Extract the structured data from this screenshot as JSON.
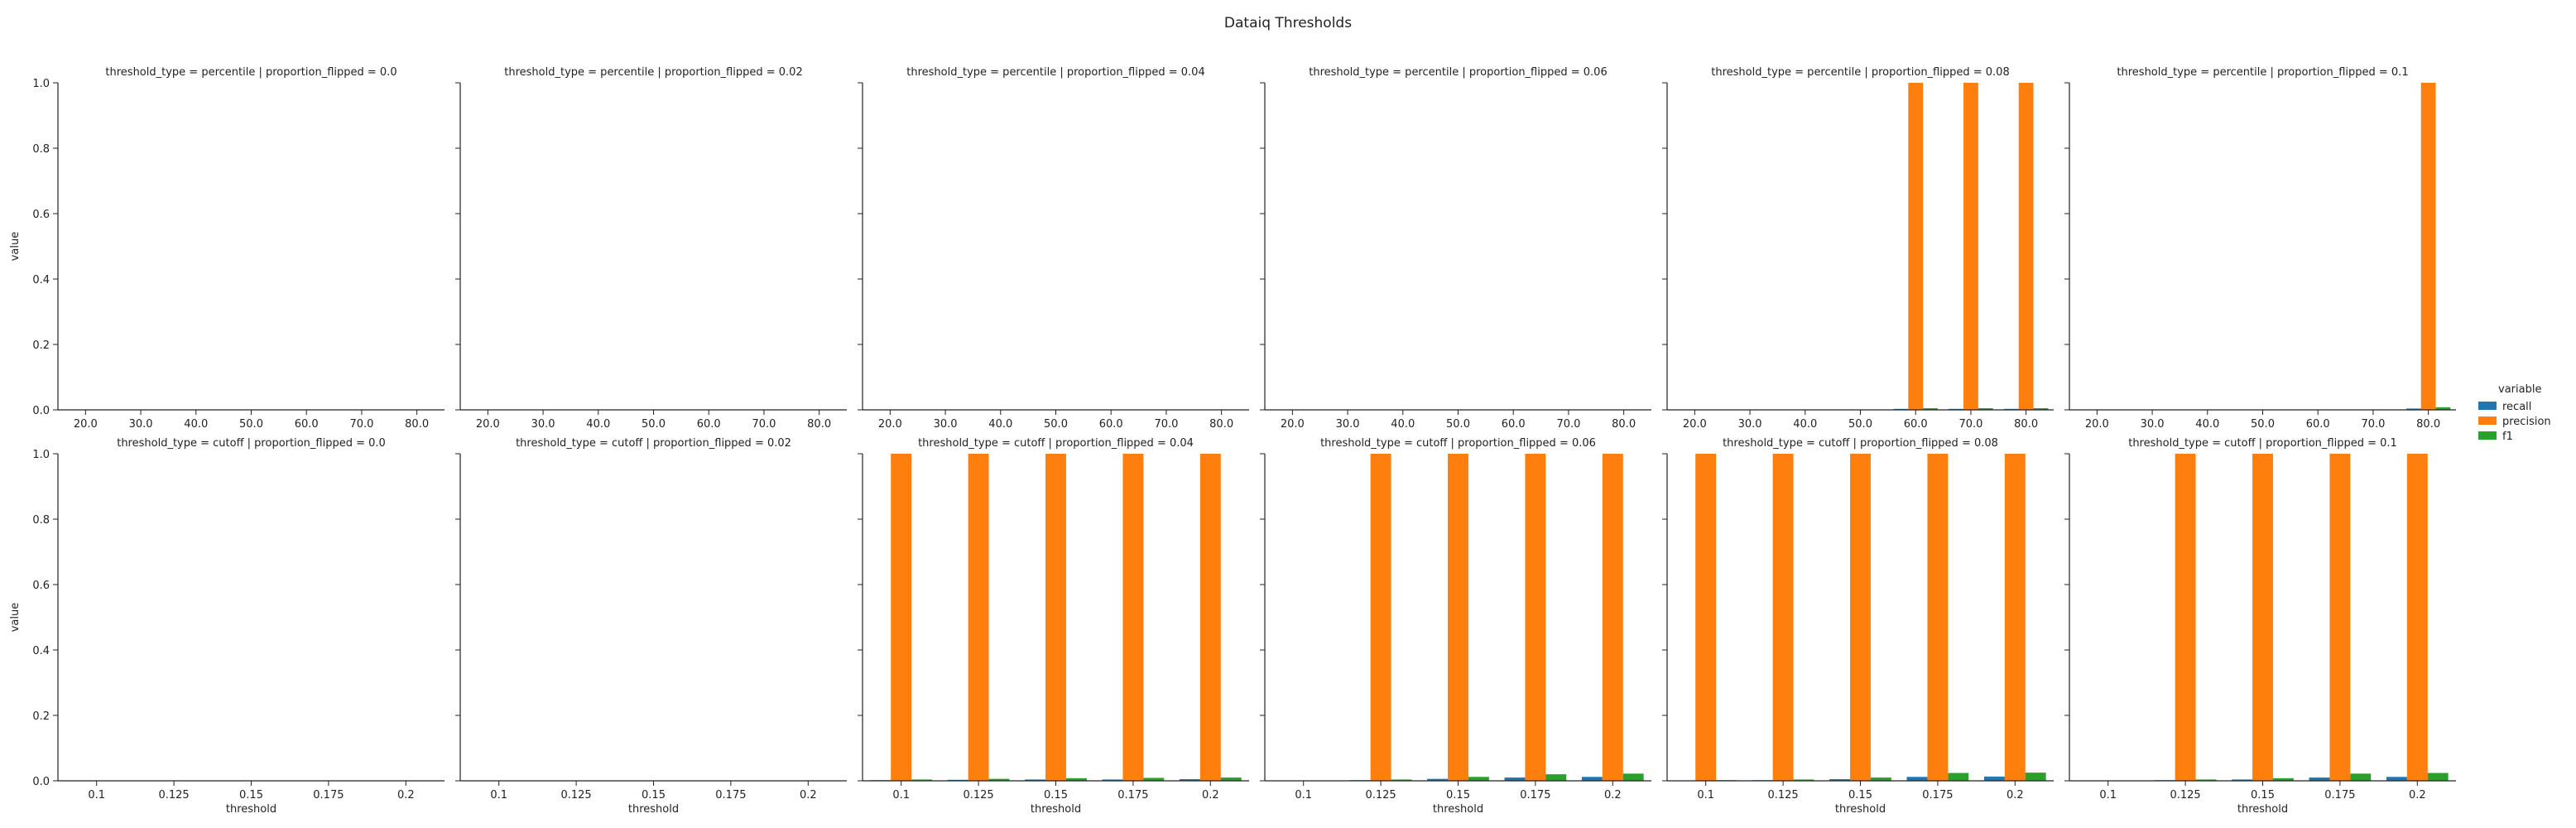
{
  "figure": {
    "title": "Dataiq Thresholds"
  },
  "legend": {
    "title": "variable",
    "placement": "right",
    "items": [
      {
        "label": "recall",
        "color": "#1f77b4"
      },
      {
        "label": "precision",
        "color": "#ff7f0e"
      },
      {
        "label": "f1",
        "color": "#2ca02c"
      }
    ]
  },
  "chart_data": [
    {
      "type": "bar",
      "title": "threshold_type = percentile | proportion_flipped = 0.0",
      "xlabel": "",
      "ylabel": "value",
      "categories": [
        "20.0",
        "30.0",
        "40.0",
        "50.0",
        "60.0",
        "70.0",
        "80.0"
      ],
      "ylim": [
        0,
        1.0
      ],
      "series": [
        {
          "name": "recall",
          "values": [
            0,
            0,
            0,
            0,
            0,
            0,
            0
          ]
        },
        {
          "name": "precision",
          "values": [
            0,
            0,
            0,
            0,
            0,
            0,
            0
          ]
        },
        {
          "name": "f1",
          "values": [
            0,
            0,
            0,
            0,
            0,
            0,
            0
          ]
        }
      ]
    },
    {
      "type": "bar",
      "title": "threshold_type = percentile | proportion_flipped = 0.02",
      "xlabel": "",
      "ylabel": "",
      "categories": [
        "20.0",
        "30.0",
        "40.0",
        "50.0",
        "60.0",
        "70.0",
        "80.0"
      ],
      "ylim": [
        0,
        1.0
      ],
      "series": [
        {
          "name": "recall",
          "values": [
            0,
            0,
            0,
            0,
            0,
            0,
            0
          ]
        },
        {
          "name": "precision",
          "values": [
            0,
            0,
            0,
            0,
            0,
            0,
            0
          ]
        },
        {
          "name": "f1",
          "values": [
            0,
            0,
            0,
            0,
            0,
            0,
            0
          ]
        }
      ]
    },
    {
      "type": "bar",
      "title": "threshold_type = percentile | proportion_flipped = 0.04",
      "xlabel": "",
      "ylabel": "",
      "categories": [
        "20.0",
        "30.0",
        "40.0",
        "50.0",
        "60.0",
        "70.0",
        "80.0"
      ],
      "ylim": [
        0,
        1.0
      ],
      "series": [
        {
          "name": "recall",
          "values": [
            0,
            0,
            0,
            0,
            0,
            0,
            0
          ]
        },
        {
          "name": "precision",
          "values": [
            0,
            0,
            0,
            0,
            0,
            0,
            0
          ]
        },
        {
          "name": "f1",
          "values": [
            0,
            0,
            0,
            0,
            0,
            0,
            0
          ]
        }
      ]
    },
    {
      "type": "bar",
      "title": "threshold_type = percentile | proportion_flipped = 0.06",
      "xlabel": "",
      "ylabel": "",
      "categories": [
        "20.0",
        "30.0",
        "40.0",
        "50.0",
        "60.0",
        "70.0",
        "80.0"
      ],
      "ylim": [
        0,
        1.0
      ],
      "series": [
        {
          "name": "recall",
          "values": [
            0,
            0,
            0,
            0,
            0,
            0,
            0
          ]
        },
        {
          "name": "precision",
          "values": [
            0,
            0,
            0,
            0,
            0,
            0,
            0
          ]
        },
        {
          "name": "f1",
          "values": [
            0,
            0,
            0,
            0,
            0,
            0,
            0
          ]
        }
      ]
    },
    {
      "type": "bar",
      "title": "threshold_type = percentile | proportion_flipped = 0.08",
      "xlabel": "",
      "ylabel": "",
      "categories": [
        "20.0",
        "30.0",
        "40.0",
        "50.0",
        "60.0",
        "70.0",
        "80.0"
      ],
      "ylim": [
        0,
        1.0
      ],
      "series": [
        {
          "name": "recall",
          "values": [
            0,
            0,
            0,
            0,
            0.003,
            0.003,
            0.003
          ]
        },
        {
          "name": "precision",
          "values": [
            0,
            0,
            0,
            0,
            1.0,
            1.0,
            1.0
          ]
        },
        {
          "name": "f1",
          "values": [
            0,
            0,
            0,
            0,
            0.005,
            0.005,
            0.005
          ]
        }
      ]
    },
    {
      "type": "bar",
      "title": "threshold_type = percentile | proportion_flipped = 0.1",
      "xlabel": "",
      "ylabel": "",
      "categories": [
        "20.0",
        "30.0",
        "40.0",
        "50.0",
        "60.0",
        "70.0",
        "80.0"
      ],
      "ylim": [
        0,
        1.0
      ],
      "series": [
        {
          "name": "recall",
          "values": [
            0,
            0,
            0,
            0,
            0,
            0,
            0.004
          ]
        },
        {
          "name": "precision",
          "values": [
            0,
            0,
            0,
            0,
            0,
            0,
            1.0
          ]
        },
        {
          "name": "f1",
          "values": [
            0,
            0,
            0,
            0,
            0,
            0,
            0.008
          ]
        }
      ]
    },
    {
      "type": "bar",
      "title": "threshold_type = cutoff | proportion_flipped = 0.0",
      "xlabel": "threshold",
      "ylabel": "value",
      "categories": [
        "0.1",
        "0.125",
        "0.15",
        "0.175",
        "0.2"
      ],
      "ylim": [
        0,
        1.0
      ],
      "series": [
        {
          "name": "recall",
          "values": [
            0,
            0,
            0,
            0,
            0
          ]
        },
        {
          "name": "precision",
          "values": [
            0,
            0,
            0,
            0,
            0
          ]
        },
        {
          "name": "f1",
          "values": [
            0,
            0,
            0,
            0,
            0
          ]
        }
      ]
    },
    {
      "type": "bar",
      "title": "threshold_type = cutoff | proportion_flipped = 0.02",
      "xlabel": "threshold",
      "ylabel": "",
      "categories": [
        "0.1",
        "0.125",
        "0.15",
        "0.175",
        "0.2"
      ],
      "ylim": [
        0,
        1.0
      ],
      "series": [
        {
          "name": "recall",
          "values": [
            0,
            0,
            0,
            0,
            0
          ]
        },
        {
          "name": "precision",
          "values": [
            0,
            0,
            0,
            0,
            0
          ]
        },
        {
          "name": "f1",
          "values": [
            0,
            0,
            0,
            0,
            0
          ]
        }
      ]
    },
    {
      "type": "bar",
      "title": "threshold_type = cutoff | proportion_flipped = 0.04",
      "xlabel": "threshold",
      "ylabel": "",
      "categories": [
        "0.1",
        "0.125",
        "0.15",
        "0.175",
        "0.2"
      ],
      "ylim": [
        0,
        1.0
      ],
      "series": [
        {
          "name": "recall",
          "values": [
            0.002,
            0.003,
            0.004,
            0.004,
            0.005
          ]
        },
        {
          "name": "precision",
          "values": [
            1.0,
            1.0,
            1.0,
            1.0,
            1.0
          ]
        },
        {
          "name": "f1",
          "values": [
            0.004,
            0.006,
            0.008,
            0.009,
            0.01
          ]
        }
      ]
    },
    {
      "type": "bar",
      "title": "threshold_type = cutoff | proportion_flipped = 0.06",
      "xlabel": "threshold",
      "ylabel": "",
      "categories": [
        "0.1",
        "0.125",
        "0.15",
        "0.175",
        "0.2"
      ],
      "ylim": [
        0,
        1.0
      ],
      "series": [
        {
          "name": "recall",
          "values": [
            0,
            0.002,
            0.006,
            0.01,
            0.012
          ]
        },
        {
          "name": "precision",
          "values": [
            0,
            1.0,
            1.0,
            1.0,
            1.0
          ]
        },
        {
          "name": "f1",
          "values": [
            0,
            0.004,
            0.012,
            0.02,
            0.022
          ]
        }
      ]
    },
    {
      "type": "bar",
      "title": "threshold_type = cutoff | proportion_flipped = 0.08",
      "xlabel": "threshold",
      "ylabel": "",
      "categories": [
        "0.1",
        "0.125",
        "0.15",
        "0.175",
        "0.2"
      ],
      "ylim": [
        0,
        1.0
      ],
      "series": [
        {
          "name": "recall",
          "values": [
            0.001,
            0.002,
            0.005,
            0.012,
            0.013
          ]
        },
        {
          "name": "precision",
          "values": [
            1.0,
            1.0,
            1.0,
            1.0,
            1.0
          ]
        },
        {
          "name": "f1",
          "values": [
            0.002,
            0.004,
            0.01,
            0.024,
            0.025
          ]
        }
      ]
    },
    {
      "type": "bar",
      "title": "threshold_type = cutoff | proportion_flipped = 0.1",
      "xlabel": "threshold",
      "ylabel": "",
      "categories": [
        "0.1",
        "0.125",
        "0.15",
        "0.175",
        "0.2"
      ],
      "ylim": [
        0,
        1.0
      ],
      "series": [
        {
          "name": "recall",
          "values": [
            0,
            0.002,
            0.004,
            0.01,
            0.012
          ]
        },
        {
          "name": "precision",
          "values": [
            0,
            1.0,
            1.0,
            1.0,
            1.0
          ]
        },
        {
          "name": "f1",
          "values": [
            0,
            0.004,
            0.008,
            0.022,
            0.024
          ]
        }
      ]
    }
  ]
}
